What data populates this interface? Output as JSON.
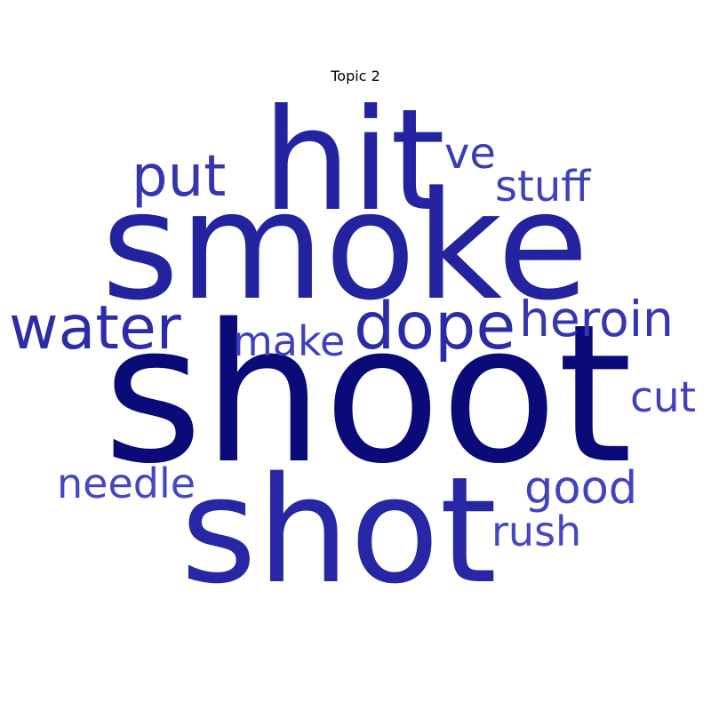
{
  "title": "Topic 2",
  "words": [
    {
      "id": "shoot",
      "text": "shoot",
      "color": "#0a0a78"
    },
    {
      "id": "smoke",
      "text": "smoke",
      "color": "#2323a0"
    },
    {
      "id": "hit",
      "text": "hit",
      "color": "#2424a3"
    },
    {
      "id": "shot",
      "text": "shot",
      "color": "#2727a6"
    },
    {
      "id": "dope",
      "text": "dope",
      "color": "#2b2ba8"
    },
    {
      "id": "water",
      "text": "water",
      "color": "#2c2ca8"
    },
    {
      "id": "heroin",
      "text": "heroin",
      "color": "#3636b0"
    },
    {
      "id": "put",
      "text": "put",
      "color": "#3535b0"
    },
    {
      "id": "ve",
      "text": "ve",
      "color": "#3b3bb8"
    },
    {
      "id": "stuff",
      "text": "stuff",
      "color": "#4040bd"
    },
    {
      "id": "make",
      "text": "make",
      "color": "#4040bf"
    },
    {
      "id": "cut",
      "text": "cut",
      "color": "#4242c0"
    },
    {
      "id": "needle",
      "text": "needle",
      "color": "#4646c3"
    },
    {
      "id": "good",
      "text": "good",
      "color": "#4242c1"
    },
    {
      "id": "rush",
      "text": "rush",
      "color": "#4646c4"
    }
  ]
}
